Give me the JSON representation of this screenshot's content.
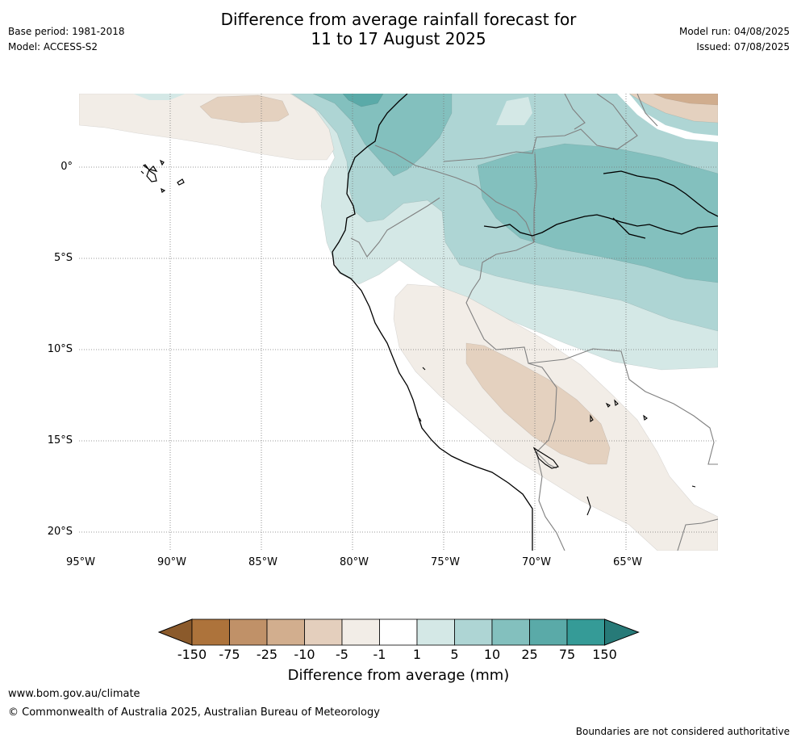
{
  "header": {
    "title_line1": "Difference from average rainfall forecast for",
    "title_line2": "11 to 17 August 2025",
    "base_period": "Base period: 1981-2018",
    "model": "Model: ACCESS-S2",
    "model_run": "Model run: 04/08/2025",
    "issued": "Issued: 07/08/2025"
  },
  "map": {
    "lat_labels": [
      "0°",
      "5°S",
      "10°S",
      "15°S",
      "20°S"
    ],
    "lon_labels": [
      "95°W",
      "90°W",
      "85°W",
      "80°W",
      "75°W",
      "70°W",
      "65°W"
    ],
    "grid": true,
    "colors": {
      "wet_1_5": "#d4e8e6",
      "wet_5_10": "#aed5d4",
      "wet_10_25": "#83c0be",
      "wet_25_75": "#5aaaa8",
      "dry_1_5": "#f2ede7",
      "dry_5_10": "#e4d1bf",
      "dry_10_25": "#d0ad8e",
      "coast": "#000000",
      "border": "#808080"
    }
  },
  "colorbar": {
    "title": "Difference from average (mm)",
    "ticks": [
      "-150",
      "-75",
      "-25",
      "-10",
      "-5",
      "-1",
      "1",
      "5",
      "10",
      "25",
      "75",
      "150"
    ],
    "colors": [
      "#8b5a2b",
      "#ad733b",
      "#c09168",
      "#d2ae8e",
      "#e4cfbd",
      "#f2ede7",
      "#ffffff",
      "#d4e8e6",
      "#aed5d4",
      "#83c0be",
      "#5aaaa8",
      "#359b97",
      "#277a78"
    ]
  },
  "footer": {
    "url": "www.bom.gov.au/climate",
    "copyright": "© Commonwealth of Australia 2025, Australian Bureau of Meteorology",
    "note": "Boundaries are not considered authoritative"
  }
}
